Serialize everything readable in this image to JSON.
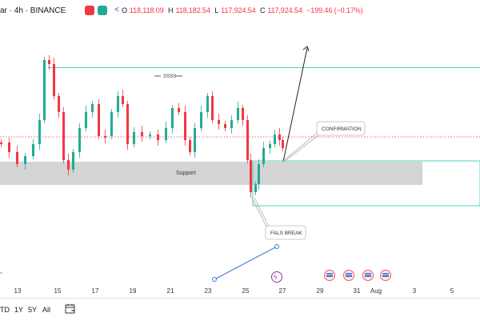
{
  "header": {
    "symbol": "ar · 4h · BINANCE",
    "ohlc": [
      {
        "label": "O",
        "value": "118,118.09"
      },
      {
        "label": "H",
        "value": "118,182.54"
      },
      {
        "label": "L",
        "value": "117,924.54"
      },
      {
        "label": "C",
        "value": "117,924.54"
      }
    ],
    "change": "−199.46 (−0.17%)",
    "colors": {
      "up": "#22ab94",
      "down": "#f23645",
      "accent": "#9c27b0"
    }
  },
  "annotations": {
    "ssss": "SSSS",
    "support": "Support",
    "confirmation": "CONFIRMATION",
    "fals_break": "FALS BREAK"
  },
  "time_axis": {
    "labels": [
      "13",
      "15",
      "17",
      "19",
      "21",
      "23",
      "25",
      "27",
      "29",
      "31",
      "Aug",
      "3",
      "5"
    ]
  },
  "range_buttons": [
    "TD",
    "1Y",
    "5Y",
    "All"
  ],
  "icons": [
    "calendar-range-icon",
    "event-flag-icon",
    "lightning-icon"
  ],
  "chart_data": {
    "type": "candlestick",
    "interval": "4h",
    "candle_count": 120,
    "drawings": [
      "support zone rectangle",
      "resistance rectangle",
      "projection arrow",
      "price path line"
    ]
  }
}
